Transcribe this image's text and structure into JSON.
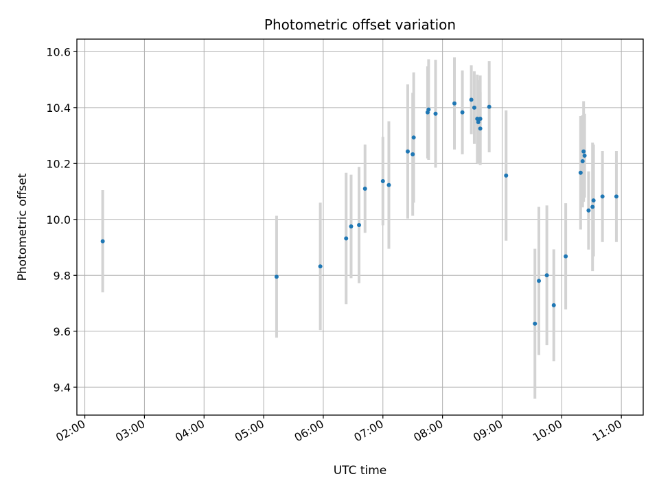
{
  "chart_data": {
    "type": "scatter",
    "title": "Photometric offset variation",
    "xlabel": "UTC time",
    "ylabel": "Photometric offset",
    "x_tick_labels": [
      "02:00",
      "03:00",
      "04:00",
      "05:00",
      "06:00",
      "07:00",
      "08:00",
      "09:00",
      "10:00",
      "11:00"
    ],
    "y_tick_labels": [
      "9.4",
      "9.6",
      "9.8",
      "10.0",
      "10.2",
      "10.4",
      "10.6"
    ],
    "y_ticks": [
      9.4,
      9.6,
      9.8,
      10.0,
      10.2,
      10.4,
      10.6
    ],
    "x_tick_hours": [
      2,
      3,
      4,
      5,
      6,
      7,
      8,
      9,
      10,
      11
    ],
    "xlim": [
      "01:52",
      "11:22"
    ],
    "ylim": [
      9.3,
      10.645
    ],
    "grid": true,
    "point_color": "#1f77b4",
    "errorbar_color": "#d3d3d3",
    "points": [
      {
        "x": "02:18",
        "y": 9.922,
        "err": 0.183
      },
      {
        "x": "05:13",
        "y": 9.795,
        "err": 0.218
      },
      {
        "x": "05:57",
        "y": 9.832,
        "err": 0.228
      },
      {
        "x": "06:23",
        "y": 9.932,
        "err": 0.235
      },
      {
        "x": "06:28",
        "y": 9.975,
        "err": 0.185
      },
      {
        "x": "06:36",
        "y": 9.98,
        "err": 0.208
      },
      {
        "x": "06:42",
        "y": 10.11,
        "err": 0.158
      },
      {
        "x": "07:00",
        "y": 10.137,
        "err": 0.158
      },
      {
        "x": "07:06",
        "y": 10.123,
        "err": 0.228
      },
      {
        "x": "07:25",
        "y": 10.243,
        "err": 0.24
      },
      {
        "x": "07:30",
        "y": 10.233,
        "err": 0.22
      },
      {
        "x": "07:31",
        "y": 10.293,
        "err": 0.233
      },
      {
        "x": "07:45",
        "y": 10.383,
        "err": 0.165
      },
      {
        "x": "07:46",
        "y": 10.393,
        "err": 0.18
      },
      {
        "x": "07:53",
        "y": 10.378,
        "err": 0.193
      },
      {
        "x": "08:12",
        "y": 10.415,
        "err": 0.165
      },
      {
        "x": "08:20",
        "y": 10.383,
        "err": 0.15
      },
      {
        "x": "08:29",
        "y": 10.428,
        "err": 0.123
      },
      {
        "x": "08:32",
        "y": 10.4,
        "err": 0.13
      },
      {
        "x": "08:35",
        "y": 10.36,
        "err": 0.158
      },
      {
        "x": "08:36",
        "y": 10.348,
        "err": 0.15
      },
      {
        "x": "08:38",
        "y": 10.36,
        "err": 0.155
      },
      {
        "x": "08:38",
        "y": 10.325,
        "err": 0.13
      },
      {
        "x": "08:47",
        "y": 10.403,
        "err": 0.163
      },
      {
        "x": "09:04",
        "y": 10.157,
        "err": 0.233
      },
      {
        "x": "09:33",
        "y": 9.627,
        "err": 0.268
      },
      {
        "x": "09:37",
        "y": 9.78,
        "err": 0.265
      },
      {
        "x": "09:45",
        "y": 9.8,
        "err": 0.25
      },
      {
        "x": "09:52",
        "y": 9.693,
        "err": 0.2
      },
      {
        "x": "10:04",
        "y": 9.868,
        "err": 0.19
      },
      {
        "x": "10:19",
        "y": 10.167,
        "err": 0.203
      },
      {
        "x": "10:21",
        "y": 10.208,
        "err": 0.165
      },
      {
        "x": "10:22",
        "y": 10.243,
        "err": 0.18
      },
      {
        "x": "10:23",
        "y": 10.228,
        "err": 0.15
      },
      {
        "x": "10:27",
        "y": 10.032,
        "err": 0.14
      },
      {
        "x": "10:31",
        "y": 10.045,
        "err": 0.23
      },
      {
        "x": "10:32",
        "y": 10.068,
        "err": 0.2
      },
      {
        "x": "10:41",
        "y": 10.082,
        "err": 0.163
      },
      {
        "x": "10:55",
        "y": 10.082,
        "err": 0.163
      }
    ]
  }
}
